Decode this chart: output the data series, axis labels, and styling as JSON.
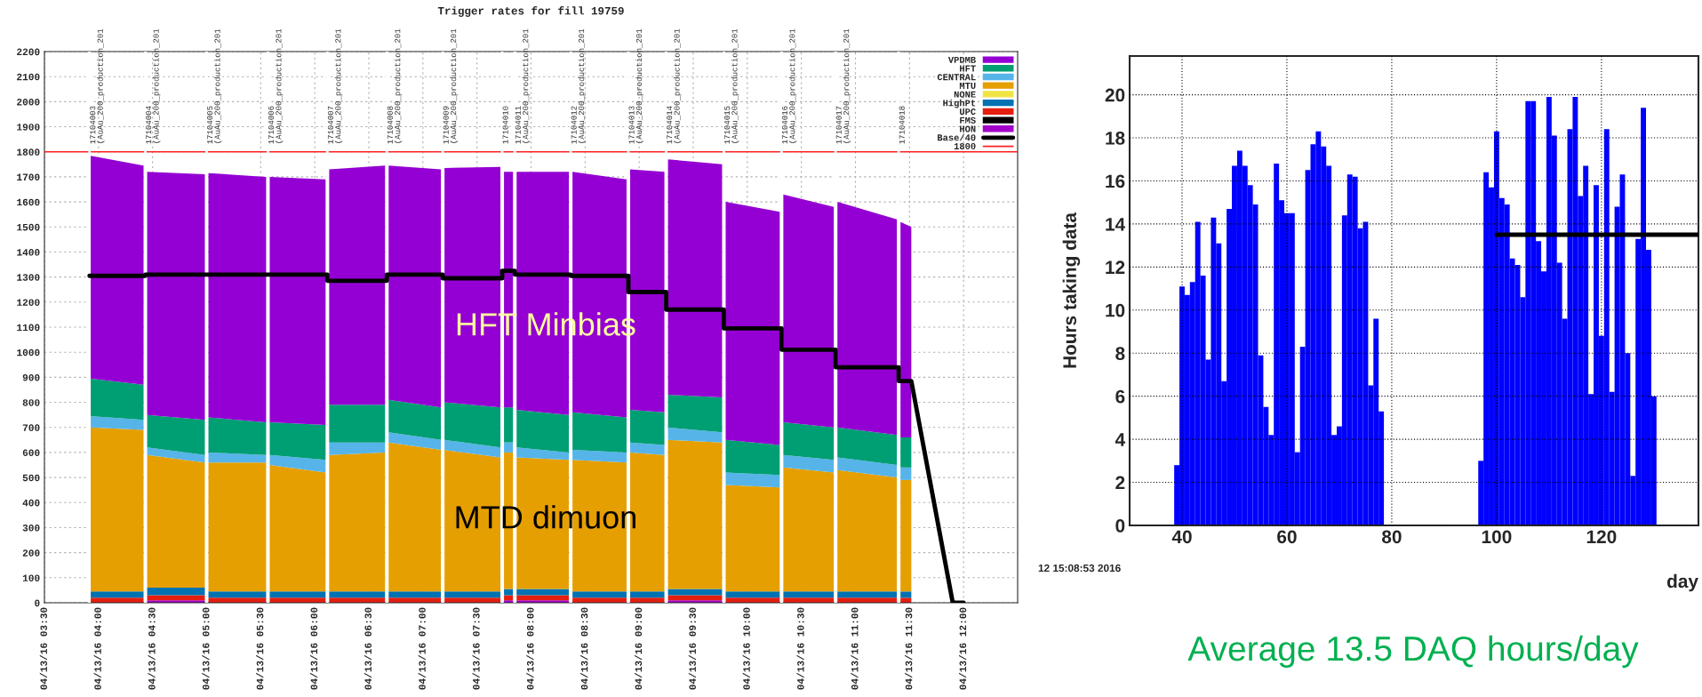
{
  "chart_data": [
    {
      "type": "area",
      "title": "Trigger rates for fill 19759",
      "stacked": true,
      "legend": "top right",
      "grid": true,
      "x": [
        "2016-04-13T03:55",
        "2016-04-13T04:25",
        "2016-04-13T04:26",
        "2016-04-13T04:27",
        "2016-04-13T04:59",
        "2016-04-13T05:00",
        "2016-04-13T05:01",
        "2016-04-13T05:33",
        "2016-04-13T05:34",
        "2016-04-13T05:35",
        "2016-04-13T06:06",
        "2016-04-13T06:07",
        "2016-04-13T06:08",
        "2016-04-13T06:39",
        "2016-04-13T06:40",
        "2016-04-13T06:41",
        "2016-04-13T07:10",
        "2016-04-13T07:11",
        "2016-04-13T07:12",
        "2016-04-13T07:43",
        "2016-04-13T07:44",
        "2016-04-13T07:45",
        "2016-04-13T07:50",
        "2016-04-13T07:51",
        "2016-04-13T07:52",
        "2016-04-13T08:21",
        "2016-04-13T08:22",
        "2016-04-13T08:23",
        "2016-04-13T08:53",
        "2016-04-13T08:54",
        "2016-04-13T08:55",
        "2016-04-13T09:14",
        "2016-04-13T09:15",
        "2016-04-13T09:16",
        "2016-04-13T09:46",
        "2016-04-13T09:47",
        "2016-04-13T09:48",
        "2016-04-13T10:18",
        "2016-04-13T10:19",
        "2016-04-13T10:20",
        "2016-04-13T10:48",
        "2016-04-13T10:49",
        "2016-04-13T10:50",
        "2016-04-13T11:23",
        "2016-04-13T11:24",
        "2016-04-13T11:25",
        "2016-04-13T11:31"
      ],
      "series": [
        {
          "name": "HON",
          "color": "#a300c9",
          "values": [
            null,
            null,
            null,
            10,
            10,
            null,
            null,
            null,
            null,
            null,
            null,
            null,
            null,
            null,
            null,
            null,
            null,
            null,
            null,
            null,
            null,
            10,
            10,
            null,
            10,
            10,
            null,
            null,
            null,
            null,
            null,
            null,
            null,
            10,
            10,
            null,
            null,
            null,
            null,
            null,
            null,
            null,
            null,
            null,
            null,
            null,
            null
          ]
        },
        {
          "name": "FMS",
          "color": "#000000",
          "values": [
            null,
            null,
            null,
            null,
            null,
            null,
            null,
            null,
            null,
            null,
            null,
            null,
            null,
            null,
            null,
            null,
            null,
            null,
            null,
            null,
            null,
            null,
            null,
            null,
            null,
            null,
            null,
            null,
            null,
            null,
            null,
            null,
            null,
            null,
            null,
            null,
            null,
            null,
            null,
            null,
            null,
            null,
            null,
            null,
            null,
            null,
            null
          ]
        },
        {
          "name": "UPC",
          "color": "#e51e10",
          "values": [
            20,
            20,
            null,
            20,
            20,
            null,
            20,
            20,
            null,
            20,
            20,
            null,
            20,
            20,
            null,
            20,
            20,
            null,
            20,
            20,
            null,
            20,
            20,
            null,
            20,
            20,
            null,
            20,
            20,
            null,
            20,
            20,
            null,
            20,
            20,
            null,
            20,
            20,
            null,
            20,
            20,
            null,
            20,
            20,
            null,
            20,
            20
          ]
        },
        {
          "name": "HighPt",
          "color": "#0072b2",
          "values": [
            25,
            25,
            null,
            30,
            30,
            null,
            25,
            25,
            null,
            25,
            25,
            null,
            25,
            25,
            null,
            25,
            25,
            null,
            25,
            25,
            null,
            25,
            25,
            null,
            25,
            25,
            null,
            25,
            25,
            null,
            25,
            25,
            null,
            25,
            25,
            null,
            25,
            25,
            null,
            25,
            25,
            null,
            25,
            25,
            null,
            25,
            25
          ]
        },
        {
          "name": "NONE",
          "color": "#f0e442",
          "values": [
            null,
            null,
            null,
            null,
            null,
            null,
            null,
            null,
            null,
            null,
            null,
            null,
            null,
            null,
            null,
            null,
            null,
            null,
            null,
            null,
            null,
            null,
            null,
            null,
            null,
            null,
            null,
            null,
            null,
            null,
            null,
            null,
            null,
            null,
            null,
            null,
            null,
            null,
            null,
            null,
            null,
            null,
            null,
            null,
            null,
            null,
            null
          ]
        },
        {
          "name": "MTU",
          "color": "#e69f00",
          "values": [
            655,
            645,
            null,
            530,
            500,
            null,
            515,
            515,
            null,
            505,
            475,
            null,
            545,
            555,
            null,
            595,
            565,
            null,
            565,
            535,
            null,
            545,
            545,
            null,
            525,
            515,
            null,
            525,
            515,
            null,
            555,
            545,
            null,
            595,
            585,
            null,
            425,
            415,
            null,
            495,
            475,
            null,
            485,
            455,
            null,
            445,
            445
          ]
        },
        {
          "name": "CENTRAL",
          "color": "#56b4e9",
          "values": [
            45,
            40,
            null,
            30,
            30,
            null,
            40,
            30,
            null,
            40,
            50,
            null,
            50,
            40,
            null,
            40,
            40,
            null,
            40,
            40,
            null,
            40,
            40,
            null,
            40,
            30,
            null,
            40,
            40,
            null,
            40,
            40,
            null,
            50,
            40,
            null,
            50,
            50,
            null,
            50,
            50,
            null,
            50,
            50,
            null,
            50,
            50
          ]
        },
        {
          "name": "HFT",
          "color": "#009e73",
          "values": [
            150,
            140,
            null,
            130,
            140,
            null,
            140,
            130,
            null,
            130,
            140,
            null,
            150,
            150,
            null,
            130,
            130,
            null,
            150,
            160,
            null,
            140,
            140,
            null,
            150,
            150,
            null,
            150,
            140,
            null,
            130,
            130,
            null,
            130,
            140,
            null,
            130,
            120,
            null,
            130,
            130,
            null,
            120,
            120,
            null,
            120,
            120
          ]
        },
        {
          "name": "VPDMB",
          "color": "#9400d3",
          "values": [
            890,
            875,
            null,
            970,
            980,
            null,
            975,
            980,
            null,
            980,
            980,
            null,
            940,
            955,
            null,
            935,
            950,
            null,
            935,
            960,
            null,
            940,
            940,
            null,
            950,
            970,
            null,
            960,
            950,
            null,
            960,
            960,
            null,
            940,
            930,
            null,
            950,
            930,
            null,
            910,
            880,
            null,
            900,
            860,
            null,
            860,
            840
          ]
        },
        {
          "name": "Base/40",
          "type": "line",
          "color": "#000000",
          "x": [
            "2016-04-13T03:55",
            "2016-04-13T04:26",
            "2016-04-13T04:26",
            "2016-04-13T06:07",
            "2016-04-13T06:07",
            "2016-04-13T06:40",
            "2016-04-13T06:40",
            "2016-04-13T07:11",
            "2016-04-13T07:11",
            "2016-04-13T07:44",
            "2016-04-13T07:44",
            "2016-04-13T07:51",
            "2016-04-13T07:51",
            "2016-04-13T08:22",
            "2016-04-13T08:22",
            "2016-04-13T08:54",
            "2016-04-13T08:54",
            "2016-04-13T09:15",
            "2016-04-13T09:15",
            "2016-04-13T09:47",
            "2016-04-13T09:47",
            "2016-04-13T10:19",
            "2016-04-13T10:19",
            "2016-04-13T10:49",
            "2016-04-13T10:49",
            "2016-04-13T11:24",
            "2016-04-13T11:24",
            "2016-04-13T11:31",
            "2016-04-13T11:54",
            "2016-04-13T12:00"
          ],
          "values": [
            1305,
            1305,
            1310,
            1310,
            1285,
            1285,
            1310,
            1310,
            1295,
            1295,
            1325,
            1325,
            1310,
            1310,
            1305,
            1305,
            1240,
            1240,
            1170,
            1170,
            1095,
            1095,
            1010,
            1010,
            940,
            940,
            885,
            885,
            0,
            0
          ]
        }
      ],
      "ref_lines": [
        {
          "axis": "y",
          "value": 1800,
          "label": "1800",
          "color": "#ff2020"
        },
        {
          "axis": "x",
          "value": "2016-04-13T03:55",
          "label": "17104003\n(AuAu_200_production_201",
          "color": "#ffffff"
        },
        {
          "axis": "x",
          "value": "2016-04-13T04:26",
          "label": "17104004\n(AuAu_200_production_201",
          "color": "#ffffff"
        },
        {
          "axis": "x",
          "value": "2016-04-13T05:00",
          "label": "17104005\n(AuAu_200_production_201",
          "color": "#ffffff"
        },
        {
          "axis": "x",
          "value": "2016-04-13T05:34",
          "label": "17104006\n(AuAu_200_production_201",
          "color": "#ffffff"
        },
        {
          "axis": "x",
          "value": "2016-04-13T06:07",
          "label": "17104007\n(AuAu_200_production_201",
          "color": "#ffffff"
        },
        {
          "axis": "x",
          "value": "2016-04-13T06:40",
          "label": "17104008\n(AuAu_200_production_201",
          "color": "#ffffff"
        },
        {
          "axis": "x",
          "value": "2016-04-13T07:11",
          "label": "17104009\n(AuAu_200_production_201",
          "color": "#ffffff"
        },
        {
          "axis": "x",
          "value": "2016-04-13T07:44",
          "label": "17104010",
          "color": "#ffffff"
        },
        {
          "axis": "x",
          "value": "2016-04-13T07:51",
          "label": "17104011\n(AuAu_200_production_201",
          "color": "#ffffff"
        },
        {
          "axis": "x",
          "value": "2016-04-13T08:22",
          "label": "17104012\n(AuAu_200_production_201",
          "color": "#ffffff"
        },
        {
          "axis": "x",
          "value": "2016-04-13T08:54",
          "label": "17104013\n(AuAu_200_production_201",
          "color": "#ffffff"
        },
        {
          "axis": "x",
          "value": "2016-04-13T09:15",
          "label": "17104014\n(AuAu_200_production_201",
          "color": "#ffffff"
        },
        {
          "axis": "x",
          "value": "2016-04-13T09:47",
          "label": "17104015\n(AuAu_200_production_201",
          "color": "#ffffff"
        },
        {
          "axis": "x",
          "value": "2016-04-13T10:19",
          "label": "17104016\n(AuAu_200_production_201",
          "color": "#ffffff"
        },
        {
          "axis": "x",
          "value": "2016-04-13T10:49",
          "label": "17104017\n(AuAu_200_production_201",
          "color": "#ffffff"
        },
        {
          "axis": "x",
          "value": "2016-04-13T11:24",
          "label": "17104018",
          "color": "#ffffff"
        }
      ],
      "xlim": [
        "2016-04-13T03:30",
        "2016-04-13T12:30"
      ],
      "ylim": [
        0,
        2200
      ],
      "xticks": [
        {
          "value": "2016-04-13T03:30",
          "label": "04/13/16 03:30"
        },
        {
          "value": "2016-04-13T04:00",
          "label": "04/13/16 04:00"
        },
        {
          "value": "2016-04-13T04:30",
          "label": "04/13/16 04:30"
        },
        {
          "value": "2016-04-13T05:00",
          "label": "04/13/16 05:00"
        },
        {
          "value": "2016-04-13T05:30",
          "label": "04/13/16 05:30"
        },
        {
          "value": "2016-04-13T06:00",
          "label": "04/13/16 06:00"
        },
        {
          "value": "2016-04-13T06:30",
          "label": "04/13/16 06:30"
        },
        {
          "value": "2016-04-13T07:00",
          "label": "04/13/16 07:00"
        },
        {
          "value": "2016-04-13T07:30",
          "label": "04/13/16 07:30"
        },
        {
          "value": "2016-04-13T08:00",
          "label": "04/13/16 08:00"
        },
        {
          "value": "2016-04-13T08:30",
          "label": "04/13/16 08:30"
        },
        {
          "value": "2016-04-13T09:00",
          "label": "04/13/16 09:00"
        },
        {
          "value": "2016-04-13T09:30",
          "label": "04/13/16 09:30"
        },
        {
          "value": "2016-04-13T10:00",
          "label": "04/13/16 10:00"
        },
        {
          "value": "2016-04-13T10:30",
          "label": "04/13/16 10:30"
        },
        {
          "value": "2016-04-13T11:00",
          "label": "04/13/16 11:00"
        },
        {
          "value": "2016-04-13T11:30",
          "label": "04/13/16 11:30"
        },
        {
          "value": "2016-04-13T12:00",
          "label": "04/13/16 12:00"
        }
      ],
      "yticks": [
        0,
        100,
        200,
        300,
        400,
        500,
        600,
        700,
        800,
        900,
        1000,
        1100,
        1200,
        1300,
        1400,
        1500,
        1600,
        1700,
        1800,
        1900,
        2000,
        2100,
        2200
      ],
      "annotations": [
        "HFT Minbias",
        "MTD dimuon"
      ]
    },
    {
      "type": "histogram",
      "xlabel": "day",
      "ylabel": "Hours taking data",
      "grid": true,
      "series": [
        {
          "type": "histogram",
          "color": "#0000ff",
          "bins": [
            38.5,
            39.5,
            40.5,
            41.5,
            42.5,
            43.5,
            44.5,
            45.5,
            46.5,
            47.5,
            48.5,
            49.5,
            50.5,
            51.5,
            52.5,
            53.5,
            54.5,
            55.5,
            56.5,
            57.5,
            58.5,
            59.5,
            60.5,
            61.5,
            62.5,
            63.5,
            64.5,
            65.5,
            66.5,
            67.5,
            68.5,
            69.5,
            70.5,
            71.5,
            72.5,
            73.5,
            74.5,
            75.5,
            76.5,
            77.5,
            78.5,
            79.5,
            80.5,
            81.5,
            82.5,
            83.5,
            84.5,
            85.5,
            86.5,
            87.5,
            88.5,
            89.5,
            90.5,
            91.5,
            92.5,
            93.5,
            94.5,
            95.5,
            96.5,
            97.5,
            98.5,
            99.5,
            100.5,
            101.5,
            102.5,
            103.5,
            104.5,
            105.5,
            106.5,
            107.5,
            108.5,
            109.5,
            110.5,
            111.5,
            112.5,
            113.5,
            114.5,
            115.5,
            116.5,
            117.5,
            118.5,
            119.5,
            120.5,
            121.5,
            122.5,
            123.5,
            124.5,
            125.5,
            126.5,
            127.5,
            128.5,
            129.5,
            130.5
          ],
          "values": [
            2.8,
            11.1,
            10.7,
            11.3,
            14.1,
            11.6,
            7.7,
            14.3,
            13.1,
            6.7,
            14.7,
            16.7,
            17.4,
            16.7,
            15.8,
            14.9,
            7.9,
            5.5,
            4.2,
            16.8,
            15.1,
            14.5,
            14.5,
            3.4,
            8.3,
            16.5,
            17.7,
            18.3,
            17.6,
            16.7,
            4.2,
            4.6,
            14.4,
            16.3,
            16.2,
            13.8,
            14.1,
            6.5,
            9.6,
            5.3,
            0,
            0,
            0,
            0,
            0,
            0,
            0,
            0,
            0,
            0,
            0,
            0,
            0,
            0,
            0,
            0,
            0,
            0,
            3.0,
            16.4,
            15.7,
            18.3,
            15.2,
            14.9,
            12.4,
            12.1,
            10.6,
            19.7,
            19.7,
            13.2,
            11.8,
            19.9,
            18.1,
            12.2,
            9.6,
            18.4,
            19.9,
            15.3,
            16.7,
            6.1,
            15.8,
            8.8,
            18.4,
            6.2,
            14.8,
            16.3,
            8.0,
            2.3,
            13.3,
            19.4,
            12.8,
            6.0
          ]
        },
        {
          "type": "line",
          "color": "#000000",
          "x": [
            100,
            138.5
          ],
          "values": [
            13.5,
            13.5
          ]
        }
      ],
      "xlim": [
        30,
        138.5
      ],
      "ylim": [
        0,
        21.8
      ],
      "xticks": [
        40,
        60,
        80,
        100,
        120
      ],
      "yticks": [
        0,
        2,
        4,
        6,
        8,
        10,
        12,
        14,
        16,
        18,
        20
      ],
      "annotations": [
        "12 15:08:53 2016",
        "Average 13.5 DAQ hours/day"
      ]
    }
  ]
}
